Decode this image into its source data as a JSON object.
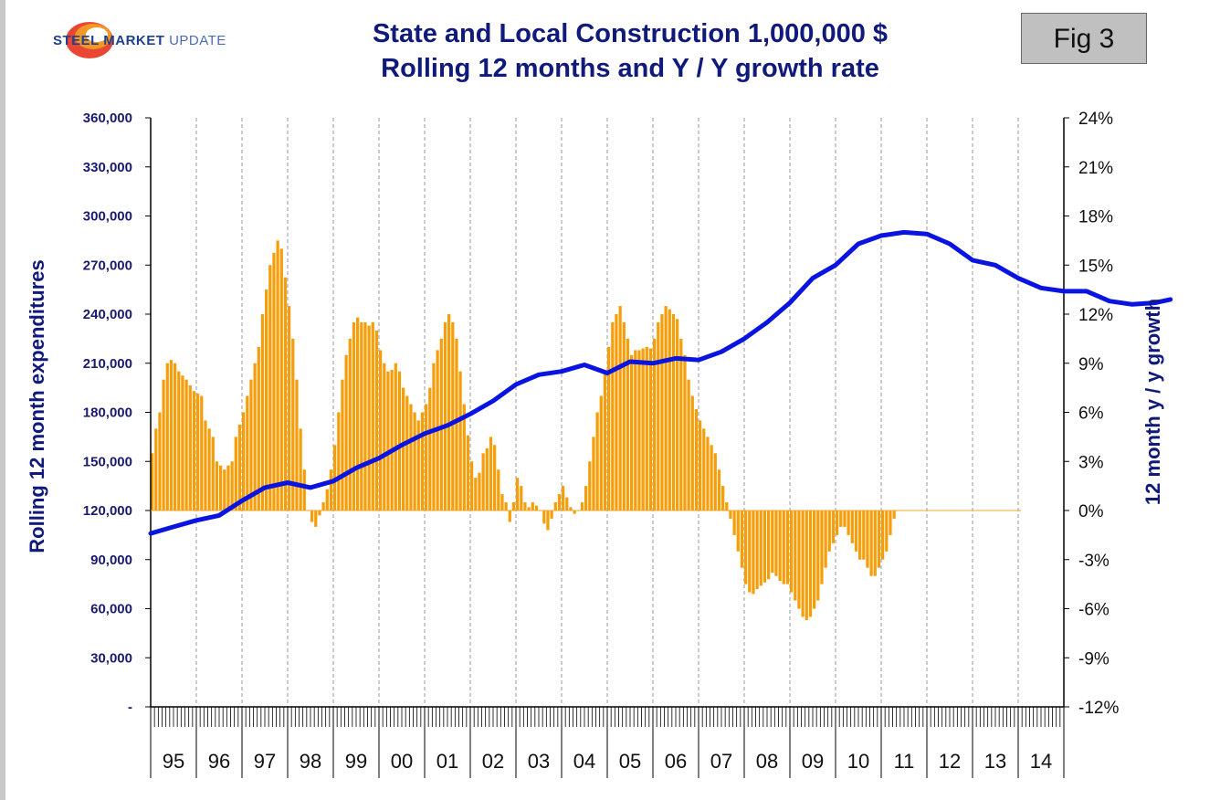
{
  "logo": {
    "part1": "STEEL MARKET ",
    "part2": "UPDATE"
  },
  "fig_label": "Fig 3",
  "chart_data": {
    "type": "bar+line",
    "title": "State and Local Construction 1,000,000 $",
    "subtitle": "Rolling 12 months and Y / Y growth rate",
    "ylabel_left": "Rolling 12 month expenditures",
    "ylabel_right": "12 month y / y growth",
    "left_axis": {
      "min": 0,
      "max": 360000,
      "step": 30000,
      "tick_labels": [
        "-",
        "30,000",
        "60,000",
        "90,000",
        "120,000",
        "150,000",
        "180,000",
        "210,000",
        "240,000",
        "270,000",
        "300,000",
        "330,000",
        "360,000"
      ]
    },
    "right_axis": {
      "min": -12,
      "max": 24,
      "step": 3,
      "tick_labels": [
        "-12%",
        "-9%",
        "-6%",
        "-3%",
        "0%",
        "3%",
        "6%",
        "9%",
        "12%",
        "15%",
        "18%",
        "21%",
        "24%"
      ]
    },
    "years": [
      "95",
      "96",
      "97",
      "98",
      "99",
      "00",
      "01",
      "02",
      "03",
      "04",
      "05",
      "06",
      "07",
      "08",
      "09",
      "10",
      "11",
      "12",
      "13",
      "14"
    ],
    "series": [
      {
        "name": "12 month y / y growth",
        "kind": "bar",
        "axis": "right",
        "color": "#f59e0b",
        "points": [
          [
            0,
            3.5
          ],
          [
            1,
            5
          ],
          [
            2,
            6
          ],
          [
            3,
            8
          ],
          [
            4,
            9
          ],
          [
            5,
            9.2
          ],
          [
            6,
            9
          ],
          [
            7,
            8.5
          ],
          [
            9,
            8
          ],
          [
            11,
            7.3
          ],
          [
            13,
            7
          ],
          [
            14,
            5.5
          ],
          [
            16,
            4.5
          ],
          [
            17,
            3
          ],
          [
            19,
            2.5
          ],
          [
            21,
            3
          ],
          [
            22,
            4.5
          ],
          [
            24,
            6
          ],
          [
            26,
            8
          ],
          [
            28,
            10
          ],
          [
            29,
            12
          ],
          [
            30,
            13.5
          ],
          [
            31,
            15
          ],
          [
            33,
            16.5
          ],
          [
            34,
            16
          ],
          [
            36,
            12.5
          ],
          [
            37,
            10.5
          ],
          [
            38,
            8
          ],
          [
            39,
            5
          ],
          [
            40,
            2.5
          ],
          [
            41,
            0
          ],
          [
            42,
            -0.7
          ],
          [
            43,
            -1
          ],
          [
            44,
            -0.3
          ],
          [
            45,
            0.5
          ],
          [
            46,
            1.3
          ],
          [
            47,
            2.5
          ],
          [
            48,
            4
          ],
          [
            49,
            6
          ],
          [
            50,
            8
          ],
          [
            51,
            9.5
          ],
          [
            52,
            10.5
          ],
          [
            53,
            11.5
          ],
          [
            54,
            11.8
          ],
          [
            55,
            11.5
          ],
          [
            56,
            11.5
          ],
          [
            57,
            11.3
          ],
          [
            58,
            11.5
          ],
          [
            59,
            11
          ],
          [
            60,
            9.8
          ],
          [
            61,
            9
          ],
          [
            62,
            8.5
          ],
          [
            63,
            8.6
          ],
          [
            64,
            9
          ],
          [
            65,
            8.5
          ],
          [
            66,
            7.5
          ],
          [
            67,
            7
          ],
          [
            68,
            6.5
          ],
          [
            69,
            6
          ],
          [
            70,
            5.5
          ],
          [
            71,
            6
          ],
          [
            72,
            6.5
          ],
          [
            73,
            7.5
          ],
          [
            74,
            9
          ],
          [
            75,
            9.8
          ],
          [
            76,
            10.5
          ],
          [
            77,
            11.5
          ],
          [
            78,
            12
          ],
          [
            79,
            11.5
          ],
          [
            80,
            10.5
          ],
          [
            81,
            8.5
          ],
          [
            82,
            6.5
          ],
          [
            83,
            4.6
          ],
          [
            84,
            3
          ],
          [
            85,
            2
          ],
          [
            86,
            2.3
          ],
          [
            87,
            3.5
          ],
          [
            88,
            3.8
          ],
          [
            89,
            4.5
          ],
          [
            90,
            4
          ],
          [
            91,
            2.5
          ],
          [
            92,
            1
          ],
          [
            93,
            0.5
          ],
          [
            94,
            -0.7
          ],
          [
            95,
            0.5
          ],
          [
            96,
            2
          ],
          [
            97,
            1.5
          ],
          [
            98,
            0.5
          ],
          [
            99,
            0.2
          ],
          [
            100,
            0.5
          ],
          [
            101,
            0.3
          ],
          [
            102,
            0
          ],
          [
            103,
            -0.8
          ],
          [
            104,
            -1.2
          ],
          [
            105,
            -0.5
          ],
          [
            106,
            0.5
          ],
          [
            107,
            1
          ],
          [
            108,
            1.5
          ],
          [
            109,
            0.8
          ],
          [
            110,
            0.2
          ],
          [
            111,
            -0.2
          ],
          [
            112,
            0
          ],
          [
            113,
            0.5
          ],
          [
            114,
            1.5
          ],
          [
            115,
            3
          ],
          [
            116,
            4.5
          ],
          [
            117,
            6
          ],
          [
            118,
            7
          ],
          [
            119,
            8.5
          ],
          [
            120,
            10
          ],
          [
            121,
            11.5
          ],
          [
            122,
            12
          ],
          [
            123,
            12.5
          ],
          [
            124,
            11.5
          ],
          [
            125,
            10.5
          ],
          [
            126,
            9.5
          ],
          [
            127,
            9.8
          ],
          [
            128,
            9.8
          ],
          [
            129,
            9.9
          ],
          [
            130,
            10
          ],
          [
            131,
            9.9
          ],
          [
            132,
            10.5
          ],
          [
            133,
            11.5
          ],
          [
            134,
            12
          ],
          [
            135,
            12.5
          ],
          [
            136,
            12.3
          ],
          [
            137,
            12
          ],
          [
            138,
            11.7
          ],
          [
            139,
            10.5
          ],
          [
            140,
            9.5
          ],
          [
            141,
            8
          ],
          [
            142,
            7
          ],
          [
            143,
            6.2
          ],
          [
            144,
            5.5
          ],
          [
            145,
            5
          ],
          [
            146,
            4.5
          ],
          [
            147,
            4
          ],
          [
            148,
            3.5
          ],
          [
            149,
            2.5
          ],
          [
            150,
            1.5
          ],
          [
            151,
            0.5
          ],
          [
            152,
            -0.5
          ],
          [
            153,
            -1.5
          ],
          [
            154,
            -2.5
          ],
          [
            155,
            -3.5
          ],
          [
            156,
            -4.5
          ],
          [
            157,
            -5
          ],
          [
            158,
            -5.1
          ],
          [
            159,
            -4.8
          ],
          [
            160,
            -4.6
          ],
          [
            161,
            -4.4
          ],
          [
            162,
            -4.2
          ],
          [
            163,
            -3.8
          ],
          [
            164,
            -4
          ],
          [
            165,
            -4.3
          ],
          [
            166,
            -4.5
          ],
          [
            167,
            -4.5
          ],
          [
            168,
            -5
          ],
          [
            169,
            -5.5
          ],
          [
            170,
            -6
          ],
          [
            171,
            -6.5
          ],
          [
            172,
            -6.7
          ],
          [
            173,
            -6.5
          ],
          [
            174,
            -6
          ],
          [
            175,
            -5.5
          ],
          [
            176,
            -4.5
          ],
          [
            177,
            -3.5
          ],
          [
            178,
            -2.5
          ],
          [
            179,
            -2
          ],
          [
            180,
            -1.5
          ],
          [
            181,
            -1
          ],
          [
            182,
            -1
          ],
          [
            183,
            -1.5
          ],
          [
            184,
            -2
          ],
          [
            185,
            -2.5
          ],
          [
            186,
            -3
          ],
          [
            187,
            -3
          ],
          [
            188,
            -3.5
          ],
          [
            189,
            -4
          ],
          [
            190,
            -4
          ],
          [
            191,
            -3.5
          ],
          [
            192,
            -3
          ],
          [
            193,
            -2.5
          ],
          [
            194,
            -1.5
          ],
          [
            195,
            -0.5
          ],
          [
            196,
            0
          ]
        ]
      },
      {
        "name": "Rolling 12 month expenditures",
        "kind": "line",
        "axis": "left",
        "color": "#0a14e0",
        "points": [
          [
            0,
            106000
          ],
          [
            6,
            110000
          ],
          [
            12,
            114000
          ],
          [
            18,
            117000
          ],
          [
            24,
            126000
          ],
          [
            30,
            134000
          ],
          [
            36,
            137000
          ],
          [
            42,
            134000
          ],
          [
            48,
            138000
          ],
          [
            54,
            146000
          ],
          [
            60,
            152000
          ],
          [
            66,
            160000
          ],
          [
            72,
            167000
          ],
          [
            78,
            172000
          ],
          [
            84,
            179000
          ],
          [
            90,
            187000
          ],
          [
            96,
            197000
          ],
          [
            102,
            203000
          ],
          [
            108,
            205000
          ],
          [
            114,
            209000
          ],
          [
            120,
            204000
          ],
          [
            126,
            211000
          ],
          [
            132,
            210000
          ],
          [
            138,
            213000
          ],
          [
            144,
            212000
          ],
          [
            150,
            217000
          ],
          [
            156,
            225000
          ],
          [
            162,
            235000
          ],
          [
            168,
            247000
          ],
          [
            174,
            262000
          ],
          [
            180,
            270000
          ],
          [
            186,
            283000
          ],
          [
            192,
            288000
          ],
          [
            198,
            290000
          ],
          [
            204,
            289000
          ],
          [
            210,
            283000
          ],
          [
            216,
            273000
          ],
          [
            222,
            270000
          ],
          [
            228,
            262000
          ],
          [
            234,
            256000
          ],
          [
            240,
            254000
          ],
          [
            246,
            254000
          ],
          [
            252,
            248000
          ],
          [
            258,
            246000
          ],
          [
            264,
            247000
          ],
          [
            268,
            249000
          ]
        ]
      }
    ]
  }
}
